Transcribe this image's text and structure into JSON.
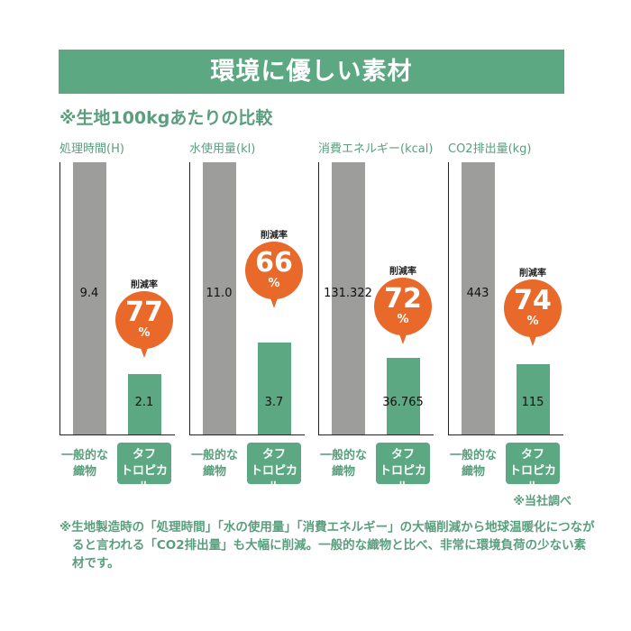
{
  "banner_title": "環境に優しい素材",
  "subtitle": "※生地100kgあたりの比較",
  "colors": {
    "green": "#5ca882",
    "gray": "#9d9d9c",
    "orange": "#e8692a",
    "text_green": "#5a9e7e"
  },
  "chart_data": [
    {
      "type": "bar",
      "title": "処理時間(H)",
      "categories": [
        "一般的な織物",
        "タフトロピカル"
      ],
      "values": [
        9.4,
        2.1
      ],
      "value_labels": [
        "9.4",
        "2.1"
      ],
      "rate_label": "削減率",
      "reduction": "77",
      "reduction_unit": "%"
    },
    {
      "type": "bar",
      "title": "水使用量(kl)",
      "categories": [
        "一般的な織物",
        "タフトロピカル"
      ],
      "values": [
        11.0,
        3.7
      ],
      "value_labels": [
        "11.0",
        "3.7"
      ],
      "rate_label": "削減率",
      "reduction": "66",
      "reduction_unit": "%"
    },
    {
      "type": "bar",
      "title": "消費エネルギー(kcal)",
      "categories": [
        "一般的な織物",
        "タフトロピカル"
      ],
      "values": [
        131322,
        36765
      ],
      "value_labels": [
        "131.322",
        "36.765"
      ],
      "rate_label": "削減率",
      "reduction": "72",
      "reduction_unit": "%"
    },
    {
      "type": "bar",
      "title": "CO2排出量(kg)",
      "categories": [
        "一般的な織物",
        "タフトロピカル"
      ],
      "values": [
        443,
        115
      ],
      "value_labels": [
        "443",
        "115"
      ],
      "rate_label": "削減率",
      "reduction": "74",
      "reduction_unit": "%"
    }
  ],
  "category_labels": {
    "general_line1": "一般的な",
    "general_line2": "織物",
    "tuff_line1": "タフ",
    "tuff_line2": "トロピカル"
  },
  "source_note": "※当社調べ",
  "footnote": "※生地製造時の「処理時間」「水の使用量」「消費エネルギー」の大幅削減から地球温暖化につながると言われる「CO2排出量」も大幅に削減。一般的な織物と比べ、非常に環境負荷の少ない素材です。"
}
